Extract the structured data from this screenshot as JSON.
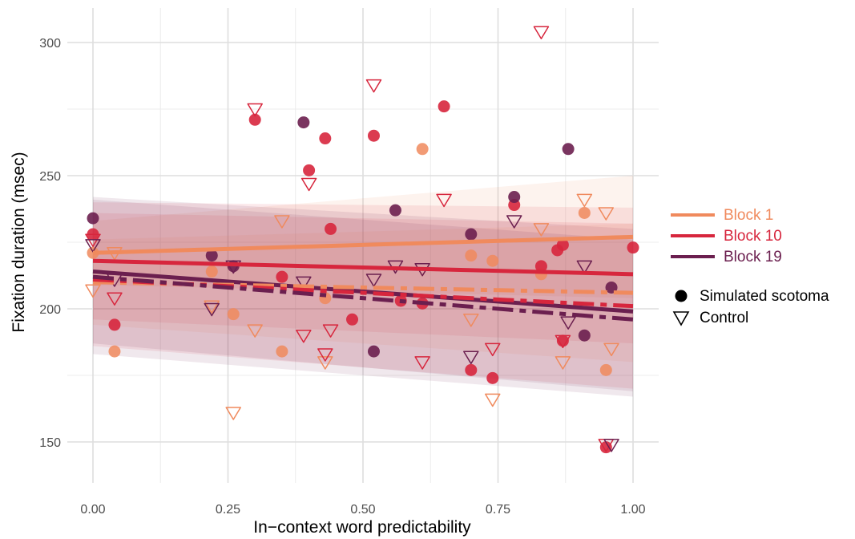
{
  "chart_data": {
    "type": "scatter",
    "xlabel": "In−context word predictability",
    "ylabel": "Fixation duration (msec)",
    "x_ticks": [
      "0.00",
      "0.25",
      "0.50",
      "0.75",
      "1.00"
    ],
    "y_ticks": [
      "150",
      "200",
      "250",
      "300"
    ],
    "xlim": [
      -0.04,
      1.05
    ],
    "ylim": [
      134,
      312
    ],
    "grid": true,
    "legend_placement": "right",
    "colors": {
      "block1": "#f08a5d",
      "block10": "#d7263d",
      "block19": "#6b1f4f"
    },
    "legend": {
      "blocks": [
        {
          "label": "Block 1",
          "key": "block1"
        },
        {
          "label": "Block 10",
          "key": "block10"
        },
        {
          "label": "Block 19",
          "key": "block19"
        }
      ],
      "conditions": [
        {
          "label": "Simulated scotoma",
          "marker": "circle"
        },
        {
          "label": "Control",
          "marker": "triangle-down"
        }
      ]
    },
    "series": [
      {
        "block": "block1",
        "condition": "Simulated scotoma",
        "points": [
          [
            0.0,
            221
          ],
          [
            0.04,
            184
          ],
          [
            0.22,
            214
          ],
          [
            0.26,
            198
          ],
          [
            0.35,
            184
          ],
          [
            0.43,
            204
          ],
          [
            0.61,
            260
          ],
          [
            0.7,
            220
          ],
          [
            0.74,
            218
          ],
          [
            0.83,
            213
          ],
          [
            0.91,
            236
          ],
          [
            0.95,
            177
          ]
        ]
      },
      {
        "block": "block10",
        "condition": "Simulated scotoma",
        "points": [
          [
            0.0,
            228
          ],
          [
            0.04,
            194
          ],
          [
            0.3,
            271
          ],
          [
            0.35,
            212
          ],
          [
            0.4,
            252
          ],
          [
            0.43,
            264
          ],
          [
            0.44,
            230
          ],
          [
            0.48,
            196
          ],
          [
            0.52,
            265
          ],
          [
            0.57,
            203
          ],
          [
            0.61,
            202
          ],
          [
            0.65,
            276
          ],
          [
            0.7,
            177
          ],
          [
            0.74,
            174
          ],
          [
            0.78,
            239
          ],
          [
            0.83,
            216
          ],
          [
            0.86,
            222
          ],
          [
            0.87,
            224
          ],
          [
            0.87,
            188
          ],
          [
            0.95,
            148
          ],
          [
            1.0,
            223
          ]
        ]
      },
      {
        "block": "block19",
        "condition": "Simulated scotoma",
        "points": [
          [
            0.0,
            234
          ],
          [
            0.22,
            220
          ],
          [
            0.26,
            216
          ],
          [
            0.39,
            270
          ],
          [
            0.52,
            184
          ],
          [
            0.56,
            237
          ],
          [
            0.7,
            228
          ],
          [
            0.78,
            242
          ],
          [
            0.88,
            260
          ],
          [
            0.91,
            190
          ],
          [
            0.96,
            208
          ]
        ]
      },
      {
        "block": "block1",
        "condition": "Control",
        "points": [
          [
            0.0,
            207
          ],
          [
            0.04,
            221
          ],
          [
            0.22,
            201
          ],
          [
            0.26,
            161
          ],
          [
            0.3,
            192
          ],
          [
            0.35,
            233
          ],
          [
            0.43,
            180
          ],
          [
            0.61,
            215
          ],
          [
            0.7,
            196
          ],
          [
            0.74,
            166
          ],
          [
            0.83,
            230
          ],
          [
            0.87,
            180
          ],
          [
            0.91,
            241
          ],
          [
            0.95,
            236
          ],
          [
            0.96,
            185
          ]
        ]
      },
      {
        "block": "block10",
        "condition": "Control",
        "points": [
          [
            0.0,
            226
          ],
          [
            0.04,
            204
          ],
          [
            0.3,
            275
          ],
          [
            0.39,
            190
          ],
          [
            0.4,
            247
          ],
          [
            0.43,
            183
          ],
          [
            0.44,
            192
          ],
          [
            0.52,
            284
          ],
          [
            0.61,
            180
          ],
          [
            0.65,
            241
          ],
          [
            0.74,
            185
          ],
          [
            0.83,
            304
          ],
          [
            0.87,
            188
          ],
          [
            0.95,
            149
          ]
        ]
      },
      {
        "block": "block19",
        "condition": "Control",
        "points": [
          [
            0.0,
            224
          ],
          [
            0.04,
            211
          ],
          [
            0.22,
            200
          ],
          [
            0.26,
            216
          ],
          [
            0.39,
            210
          ],
          [
            0.52,
            211
          ],
          [
            0.56,
            216
          ],
          [
            0.61,
            215
          ],
          [
            0.7,
            182
          ],
          [
            0.78,
            233
          ],
          [
            0.88,
            195
          ],
          [
            0.91,
            216
          ],
          [
            0.96,
            149
          ]
        ]
      }
    ],
    "fits": [
      {
        "block": "block1",
        "condition": "Simulated scotoma",
        "style": "solid",
        "y_at_0": 221,
        "y_at_1": 227,
        "ci_low": [
          209,
          204
        ],
        "ci_high": [
          233,
          250
        ]
      },
      {
        "block": "block10",
        "condition": "Simulated scotoma",
        "style": "solid",
        "y_at_0": 218,
        "y_at_1": 213,
        "ci_low": [
          196,
          187
        ],
        "ci_high": [
          240,
          238
        ]
      },
      {
        "block": "block19",
        "condition": "Simulated scotoma",
        "style": "solid",
        "y_at_0": 214,
        "y_at_1": 199,
        "ci_low": [
          187,
          169
        ],
        "ci_high": [
          242,
          230
        ]
      },
      {
        "block": "block1",
        "condition": "Control",
        "style": "dashed",
        "y_at_0": 210,
        "y_at_1": 206,
        "ci_low": [
          194,
          180
        ],
        "ci_high": [
          226,
          232
        ]
      },
      {
        "block": "block10",
        "condition": "Control",
        "style": "dashed",
        "y_at_0": 211,
        "y_at_1": 201,
        "ci_low": [
          186,
          170
        ],
        "ci_high": [
          236,
          232
        ]
      },
      {
        "block": "block19",
        "condition": "Control",
        "style": "dashed",
        "y_at_0": 212,
        "y_at_1": 196,
        "ci_low": [
          183,
          167
        ],
        "ci_high": [
          241,
          226
        ]
      }
    ]
  }
}
